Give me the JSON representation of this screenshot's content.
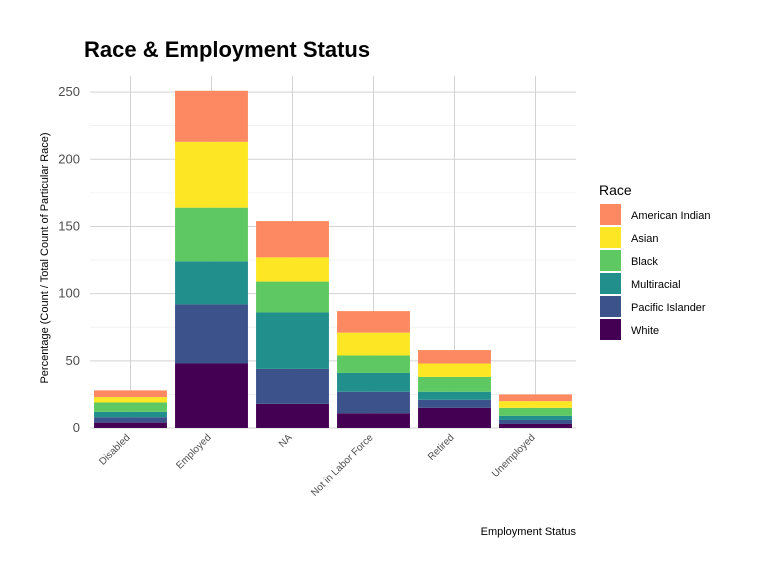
{
  "chart_data": {
    "type": "bar",
    "stacked": true,
    "title": "Race & Employment Status",
    "xlabel": "Employment Status",
    "ylabel": "Percentage (Count / Total Count of Particular Race)",
    "ylim": [
      0,
      262
    ],
    "yticks": [
      0,
      50,
      100,
      150,
      200,
      250
    ],
    "grid": true,
    "legend": {
      "title": "Race",
      "position": "right"
    },
    "categories": [
      "Disabled",
      "Employed",
      "NA",
      "Not in Labor Force",
      "Retired",
      "Unemployed"
    ],
    "series": [
      {
        "name": "White",
        "color": "#440154",
        "values": [
          4,
          48,
          18,
          11,
          15,
          3
        ]
      },
      {
        "name": "Pacific Islander",
        "color": "#3b528b",
        "values": [
          4,
          44,
          26,
          16,
          6,
          3
        ]
      },
      {
        "name": "Multiracial",
        "color": "#21908c",
        "values": [
          4,
          32,
          42,
          14,
          6,
          3
        ]
      },
      {
        "name": "Black",
        "color": "#5ec962",
        "values": [
          7,
          40,
          23,
          13,
          11,
          6
        ]
      },
      {
        "name": "Asian",
        "color": "#fde725",
        "values": [
          4,
          49,
          18,
          17,
          10,
          5
        ]
      },
      {
        "name": "American Indian",
        "color": "#fc8961",
        "values": [
          5,
          38,
          27,
          16,
          10,
          5
        ]
      }
    ]
  }
}
